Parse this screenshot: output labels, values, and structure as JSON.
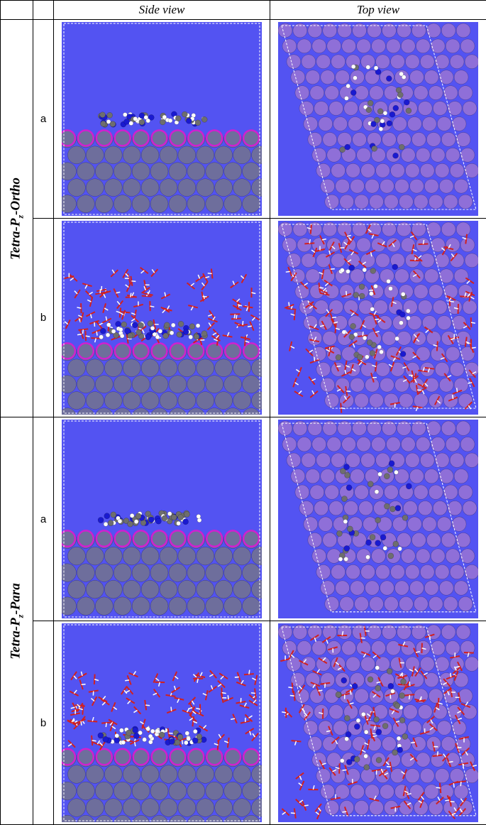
{
  "header": {
    "empty": "",
    "side": "Side view",
    "top": "Top view"
  },
  "groups": [
    {
      "prefix": "Tetra-P",
      "sub": "z",
      "suffix": "-Ortho",
      "rows": [
        {
          "label": "a",
          "solvated": false
        },
        {
          "label": "b",
          "solvated": true
        }
      ]
    },
    {
      "prefix": "Tetra-P",
      "sub": "z",
      "suffix": "-Para",
      "rows": [
        {
          "label": "a",
          "solvated": false
        },
        {
          "label": "b",
          "solvated": true
        }
      ]
    }
  ],
  "colors": {
    "background": "#5353f2",
    "metal": "#6e6e9c",
    "surface_ring": "#d020d0",
    "carbon": "#6e6e6e",
    "nitrogen": "#1a1ad0",
    "hydrogen": "#ffffff",
    "oxygen": "#d02020",
    "chloride": "#90e0a0"
  }
}
